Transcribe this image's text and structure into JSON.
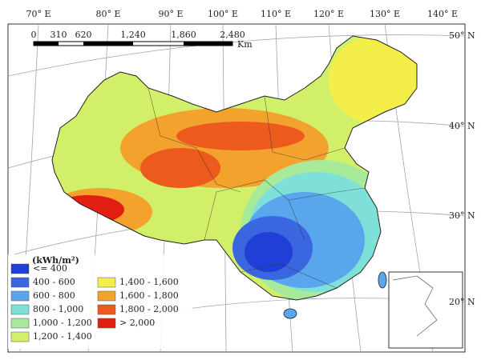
{
  "map": {
    "longitude_labels": [
      "70° E",
      "80° E",
      "90° E",
      "100° E",
      "110° E",
      "120° E",
      "130° E",
      "140° E"
    ],
    "latitude_labels": [
      "50° N",
      "40° N",
      "30° N",
      "20° N"
    ],
    "scale_labels": [
      "0",
      "310",
      "620",
      "1,240",
      "1,860",
      "2,480"
    ],
    "scale_unit": "Km",
    "legend": {
      "title": "(kWh/m²)",
      "items": [
        {
          "label": "<= 400",
          "color": "#1f3fd6"
        },
        {
          "label": "400 - 600",
          "color": "#3a66e0"
        },
        {
          "label": "600 - 800",
          "color": "#59a6ec"
        },
        {
          "label": "800 - 1,000",
          "color": "#7fe0da"
        },
        {
          "label": "1,000 - 1,200",
          "color": "#a6ea9a"
        },
        {
          "label": "1,200 - 1,400",
          "color": "#d2ef6a"
        },
        {
          "label": "1,400 - 1,600",
          "color": "#f3ee4a"
        },
        {
          "label": "1,600 - 1,800",
          "color": "#f3a22e"
        },
        {
          "label": "1,800 - 2,000",
          "color": "#ec5a1e"
        },
        {
          "label": "> 2,000",
          "color": "#e01e12"
        }
      ]
    }
  }
}
